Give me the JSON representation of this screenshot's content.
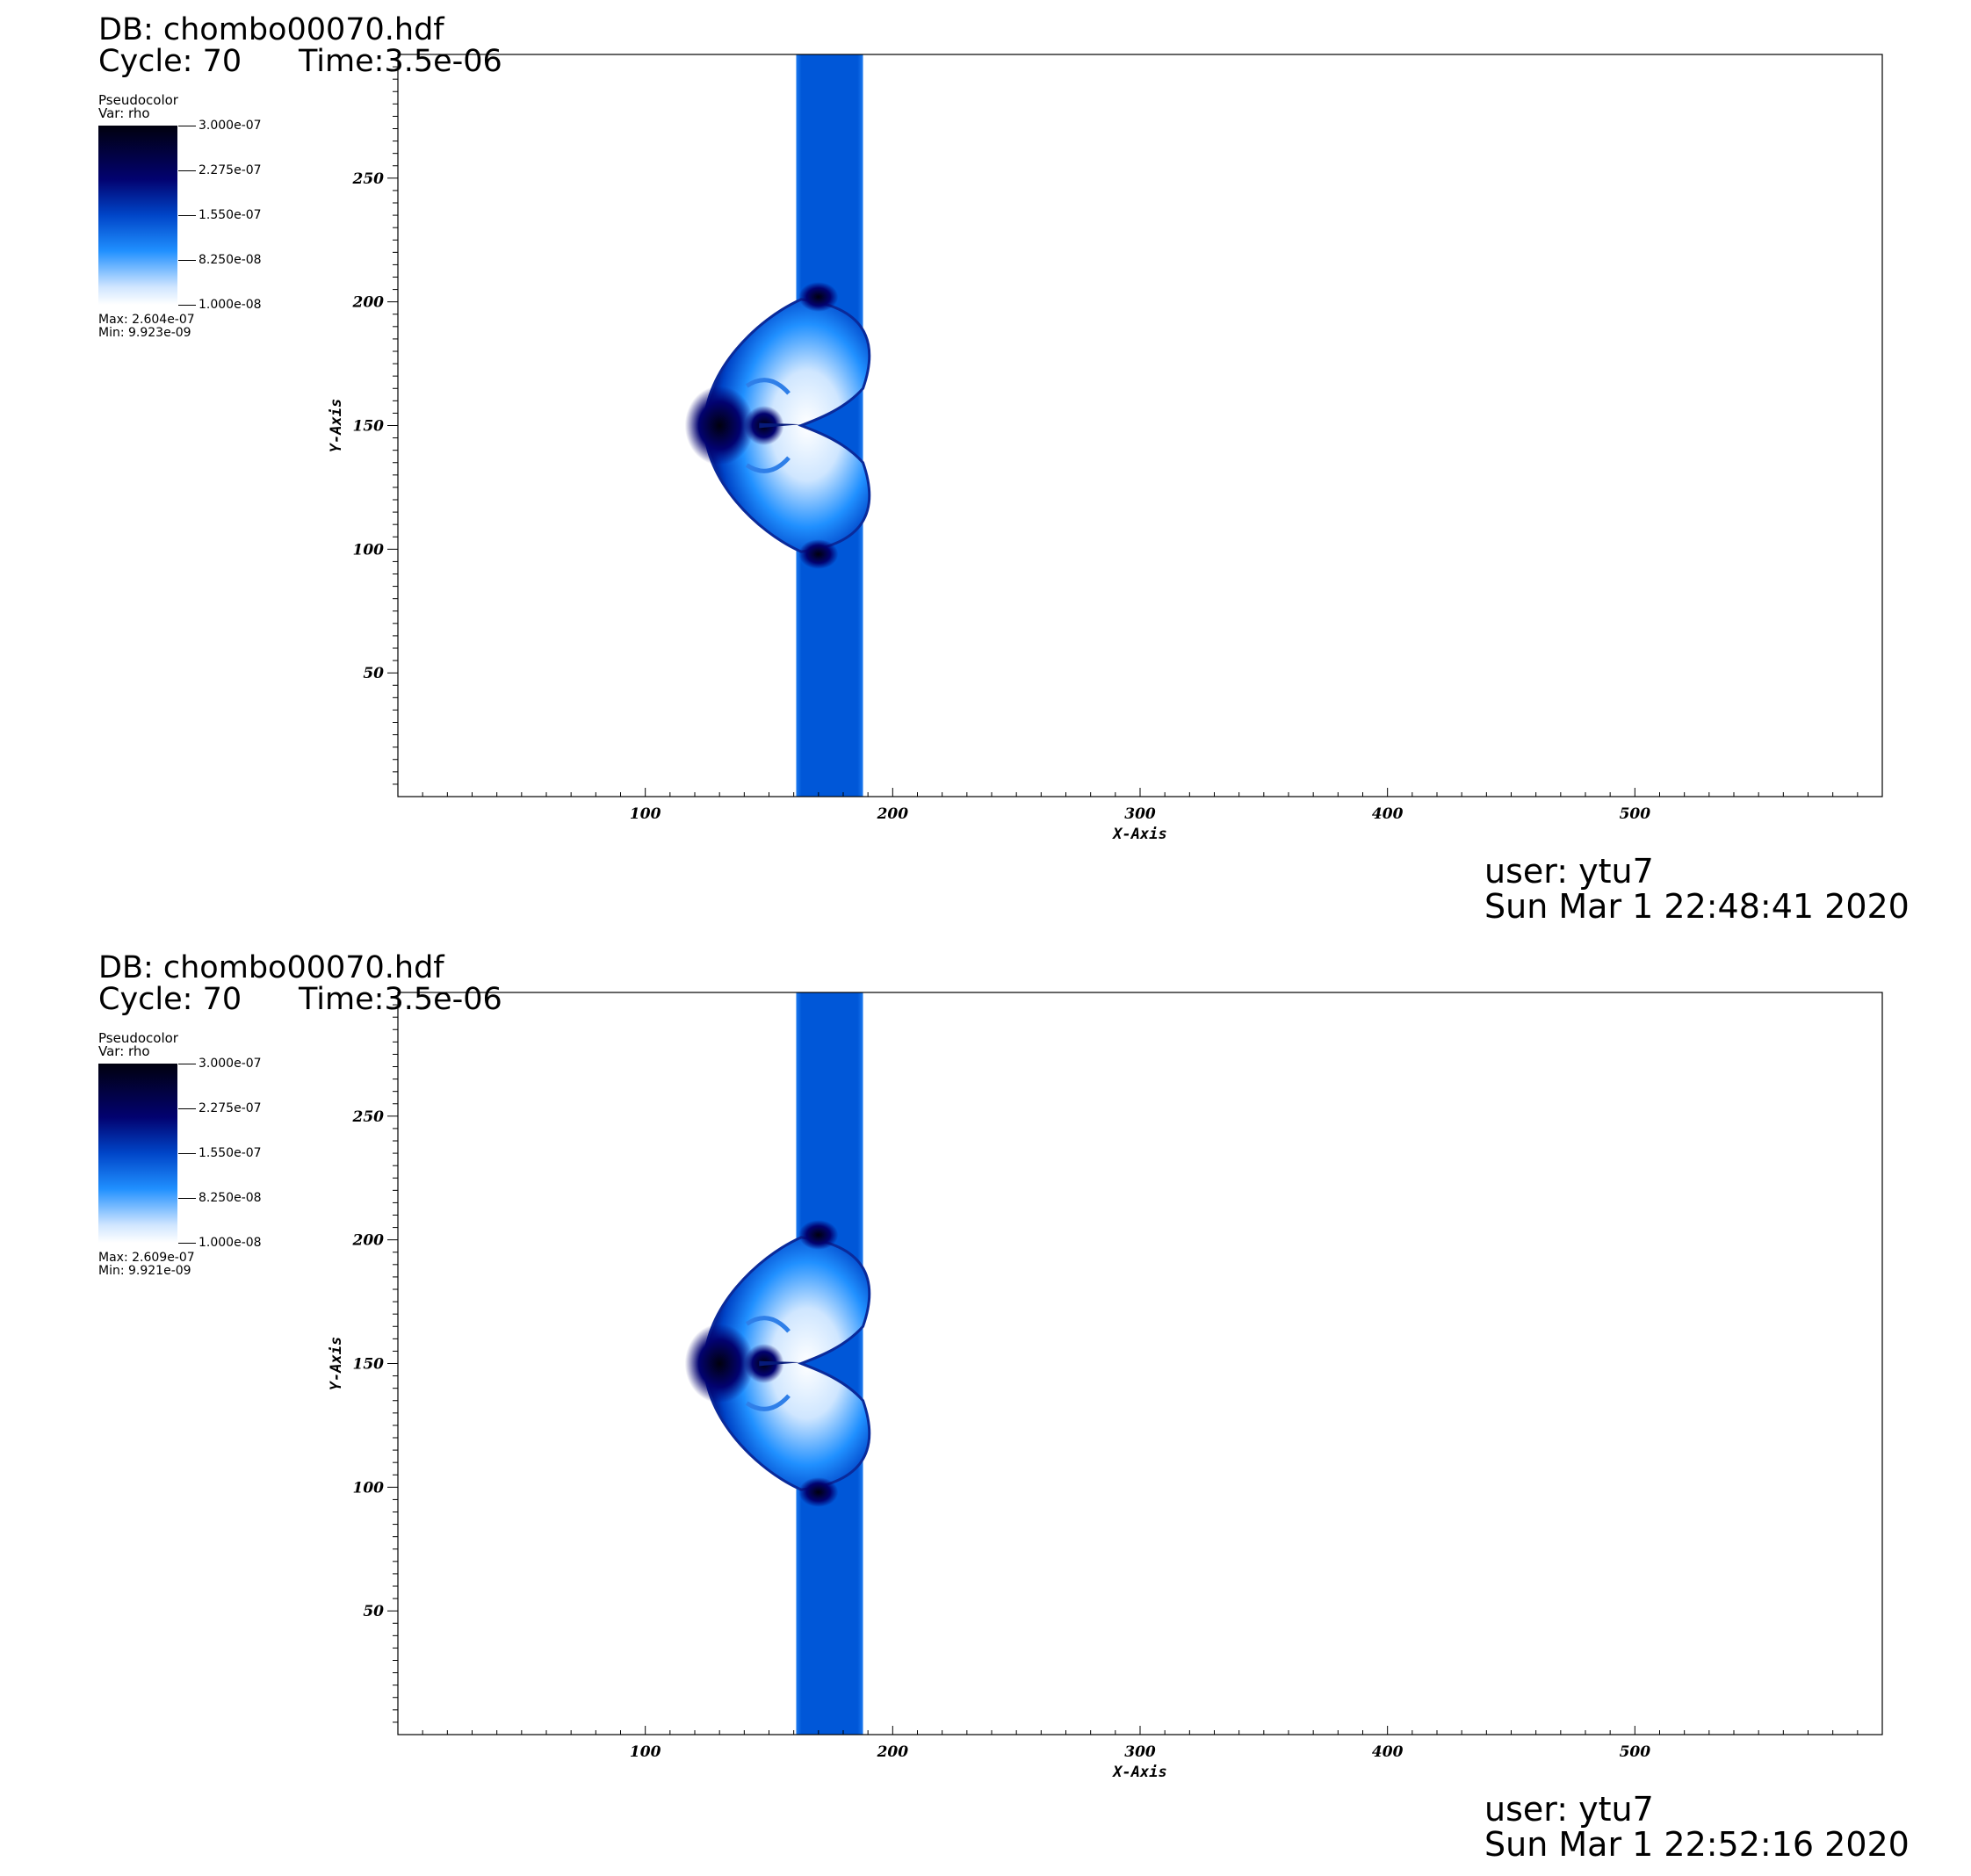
{
  "panels": [
    {
      "db": "DB: chombo00070.hdf",
      "cycle": "Cycle: 70",
      "time": "Time:3.5e-06",
      "legend": {
        "title": "Pseudocolor",
        "var": "Var: rho",
        "ticks": [
          "3.000e-07",
          "2.275e-07",
          "1.550e-07",
          "8.250e-08",
          "1.000e-08"
        ],
        "max": "Max:  2.604e-07",
        "min": "Min:  9.923e-09"
      },
      "user": "user: ytu7",
      "date": "Sun Mar  1 22:48:41 2020"
    },
    {
      "db": "DB: chombo00070.hdf",
      "cycle": "Cycle: 70",
      "time": "Time:3.5e-06",
      "legend": {
        "title": "Pseudocolor",
        "var": "Var: rho",
        "ticks": [
          "3.000e-07",
          "2.275e-07",
          "1.550e-07",
          "8.250e-08",
          "1.000e-08"
        ],
        "max": "Max:  2.609e-07",
        "min": "Min:  9.921e-09"
      },
      "user": "user: ytu7",
      "date": "Sun Mar  1 22:52:16 2020"
    }
  ],
  "chart_data": [
    {
      "type": "heatmap",
      "variable": "rho",
      "colormap": [
        "#ffffff",
        "#2090ff",
        "#0045c8",
        "#020270",
        "#01010e"
      ],
      "xlabel": "X-Axis",
      "ylabel": "Y-Axis",
      "xlim": [
        0,
        600
      ],
      "ylim": [
        0,
        300
      ],
      "xticks": [
        100,
        200,
        300,
        400,
        500
      ],
      "yticks": [
        50,
        100,
        150,
        200,
        250
      ],
      "band_x": [
        161,
        188
      ],
      "band_color": "#0057d8",
      "grid": false
    },
    {
      "type": "heatmap",
      "variable": "rho",
      "colormap": [
        "#ffffff",
        "#2090ff",
        "#0045c8",
        "#020270",
        "#01010e"
      ],
      "xlabel": "X-Axis",
      "ylabel": "Y-Axis",
      "xlim": [
        0,
        600
      ],
      "ylim": [
        0,
        300
      ],
      "xticks": [
        100,
        200,
        300,
        400,
        500
      ],
      "yticks": [
        50,
        100,
        150,
        200,
        250
      ],
      "band_x": [
        161,
        188
      ],
      "band_color": "#0057d8",
      "grid": false
    }
  ]
}
